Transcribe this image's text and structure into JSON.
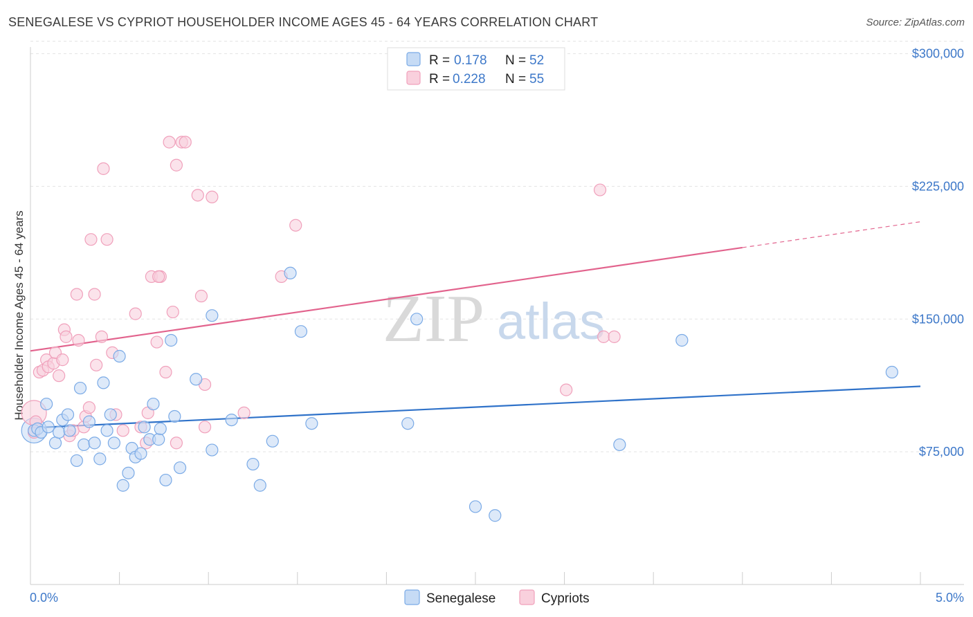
{
  "chart_data": {
    "type": "scatter",
    "title": "SENEGALESE VS CYPRIOT HOUSEHOLDER INCOME AGES 45 - 64 YEARS CORRELATION CHART",
    "source": "Source: ZipAtlas.com",
    "ylabel": "Householder Income Ages 45 - 64 years",
    "xlabel": "",
    "xlim": [
      0,
      5
    ],
    "ylim": [
      0,
      310000
    ],
    "x_tick_labels": {
      "left": "0.0%",
      "right": "5.0%"
    },
    "y_ticks": [
      {
        "value": 75000,
        "label": "$75,000"
      },
      {
        "value": 150000,
        "label": "$150,000"
      },
      {
        "value": 225000,
        "label": "$225,000"
      },
      {
        "value": 300000,
        "label": "$300,000"
      }
    ],
    "watermark": {
      "part1": "ZIP",
      "part2": "atlas"
    },
    "legend": [
      {
        "r_label": "R =",
        "r_value": "0.178",
        "n_label": "N =",
        "n_value": "52"
      },
      {
        "r_label": "R =",
        "r_value": "0.228",
        "n_label": "N =",
        "n_value": "55"
      }
    ],
    "series": [
      {
        "name": "Senegalese",
        "color": "#7aaae6",
        "fill": "#c6dbf5",
        "line_color": "#2f72c9",
        "trend": {
          "x0": 0.0,
          "y0": 88500,
          "x1": 5.0,
          "y1": 112000,
          "solid_until": 5.0
        },
        "points": [
          [
            0.02,
            87000
          ],
          [
            0.04,
            88000
          ],
          [
            0.06,
            86000
          ],
          [
            0.09,
            102000
          ],
          [
            0.1,
            89000
          ],
          [
            0.14,
            80000
          ],
          [
            0.16,
            86000
          ],
          [
            0.18,
            93000
          ],
          [
            0.21,
            96000
          ],
          [
            0.22,
            87000
          ],
          [
            0.26,
            70000
          ],
          [
            0.28,
            111000
          ],
          [
            0.3,
            79000
          ],
          [
            0.33,
            92000
          ],
          [
            0.36,
            80000
          ],
          [
            0.39,
            71000
          ],
          [
            0.41,
            114000
          ],
          [
            0.43,
            87000
          ],
          [
            0.45,
            96000
          ],
          [
            0.47,
            80000
          ],
          [
            0.5,
            129000
          ],
          [
            0.52,
            56000
          ],
          [
            0.55,
            63000
          ],
          [
            0.57,
            77000
          ],
          [
            0.59,
            72000
          ],
          [
            0.62,
            74000
          ],
          [
            0.64,
            89000
          ],
          [
            0.67,
            82000
          ],
          [
            0.69,
            102000
          ],
          [
            0.72,
            82000
          ],
          [
            0.73,
            88000
          ],
          [
            0.76,
            59000
          ],
          [
            0.79,
            138000
          ],
          [
            0.81,
            95000
          ],
          [
            0.84,
            66000
          ],
          [
            0.93,
            116000
          ],
          [
            1.02,
            152000
          ],
          [
            1.02,
            76000
          ],
          [
            1.13,
            93000
          ],
          [
            1.25,
            68000
          ],
          [
            1.29,
            56000
          ],
          [
            1.36,
            81000
          ],
          [
            1.46,
            176000
          ],
          [
            1.52,
            143000
          ],
          [
            1.58,
            91000
          ],
          [
            2.12,
            91000
          ],
          [
            2.17,
            150000
          ],
          [
            2.5,
            44000
          ],
          [
            2.61,
            39000
          ],
          [
            3.31,
            79000
          ],
          [
            3.66,
            138000
          ],
          [
            4.84,
            120000
          ]
        ]
      },
      {
        "name": "Cypriots",
        "color": "#f0a0bb",
        "fill": "#f9d0dd",
        "line_color": "#e2638d",
        "trend": {
          "x0": 0.0,
          "y0": 132000,
          "x1": 5.0,
          "y1": 205000,
          "solid_until": 4.0
        },
        "points": [
          [
            0.02,
            86000
          ],
          [
            0.03,
            92000
          ],
          [
            0.05,
            120000
          ],
          [
            0.07,
            121000
          ],
          [
            0.09,
            127000
          ],
          [
            0.1,
            123000
          ],
          [
            0.13,
            125000
          ],
          [
            0.14,
            131000
          ],
          [
            0.16,
            118000
          ],
          [
            0.18,
            127000
          ],
          [
            0.19,
            144000
          ],
          [
            0.2,
            140000
          ],
          [
            0.22,
            84000
          ],
          [
            0.24,
            87000
          ],
          [
            0.26,
            164000
          ],
          [
            0.27,
            138000
          ],
          [
            0.3,
            89000
          ],
          [
            0.31,
            95000
          ],
          [
            0.33,
            100000
          ],
          [
            0.34,
            195000
          ],
          [
            0.36,
            164000
          ],
          [
            0.37,
            124000
          ],
          [
            0.4,
            140000
          ],
          [
            0.41,
            235000
          ],
          [
            0.43,
            195000
          ],
          [
            0.46,
            131000
          ],
          [
            0.48,
            96000
          ],
          [
            0.52,
            87000
          ],
          [
            0.59,
            153000
          ],
          [
            0.62,
            89000
          ],
          [
            0.65,
            80000
          ],
          [
            0.66,
            97000
          ],
          [
            0.68,
            174000
          ],
          [
            0.71,
            137000
          ],
          [
            0.73,
            174000
          ],
          [
            0.76,
            120000
          ],
          [
            0.78,
            250000
          ],
          [
            0.8,
            154000
          ],
          [
            0.82,
            237000
          ],
          [
            0.85,
            250000
          ],
          [
            0.87,
            250000
          ],
          [
            0.82,
            80000
          ],
          [
            0.94,
            220000
          ],
          [
            0.96,
            163000
          ],
          [
            0.98,
            113000
          ],
          [
            1.02,
            219000
          ],
          [
            1.2,
            97000
          ],
          [
            1.41,
            174000
          ],
          [
            1.49,
            203000
          ],
          [
            3.01,
            110000
          ],
          [
            3.2,
            223000
          ],
          [
            3.22,
            140000
          ],
          [
            3.28,
            140000
          ],
          [
            0.98,
            89000
          ],
          [
            0.72,
            174000
          ]
        ]
      }
    ],
    "big_points": [
      {
        "series": 0,
        "x": 0.02,
        "y": 87000
      },
      {
        "series": 1,
        "x": 0.02,
        "y": 97000
      }
    ]
  }
}
